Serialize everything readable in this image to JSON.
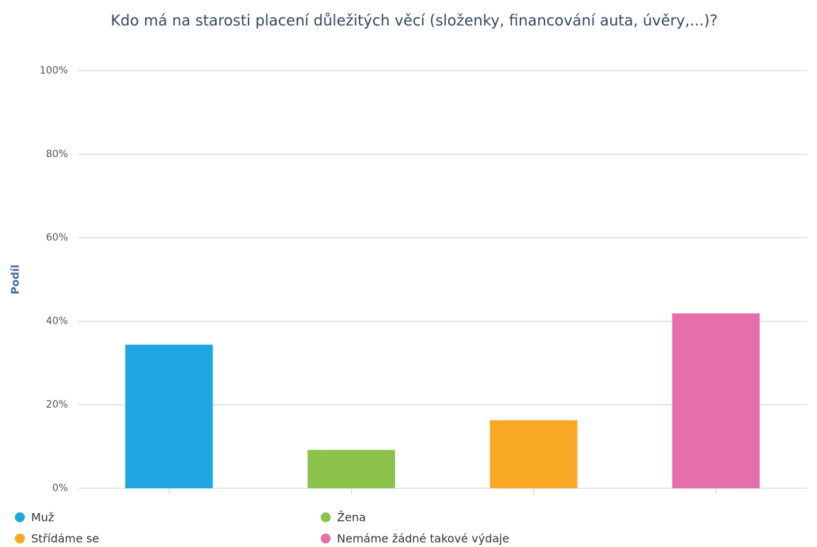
{
  "chart_data": {
    "type": "bar",
    "title": "Kdo má na starosti placení důležitých věcí (složenky, financování auta, úvěry,...)?",
    "y_label": "Podíl",
    "categories": [
      null,
      null,
      null,
      null
    ],
    "series": [
      {
        "name": "Muž",
        "color": "#1ea7e1",
        "values": [
          34.4,
          null,
          null,
          null
        ]
      },
      {
        "name": "Žena",
        "color": "#8bc34a",
        "values": [
          null,
          9.2,
          null,
          null
        ]
      },
      {
        "name": "Střídáme se",
        "color": "#f9a825",
        "values": [
          null,
          null,
          16.3,
          null
        ]
      },
      {
        "name": "Nemáme žádné takové výdaje",
        "color": "#e56fab",
        "values": [
          null,
          null,
          null,
          41.9
        ]
      }
    ],
    "ylim": [
      0,
      100
    ],
    "yticks": [
      {
        "value": 0,
        "label": "0%"
      },
      {
        "value": 20,
        "label": "20%"
      },
      {
        "value": 40,
        "label": "40%"
      },
      {
        "value": 60,
        "label": "60%"
      },
      {
        "value": 80,
        "label": "80%"
      },
      {
        "value": 100,
        "label": "100%"
      }
    ],
    "grid": true,
    "legend": "bottom"
  }
}
